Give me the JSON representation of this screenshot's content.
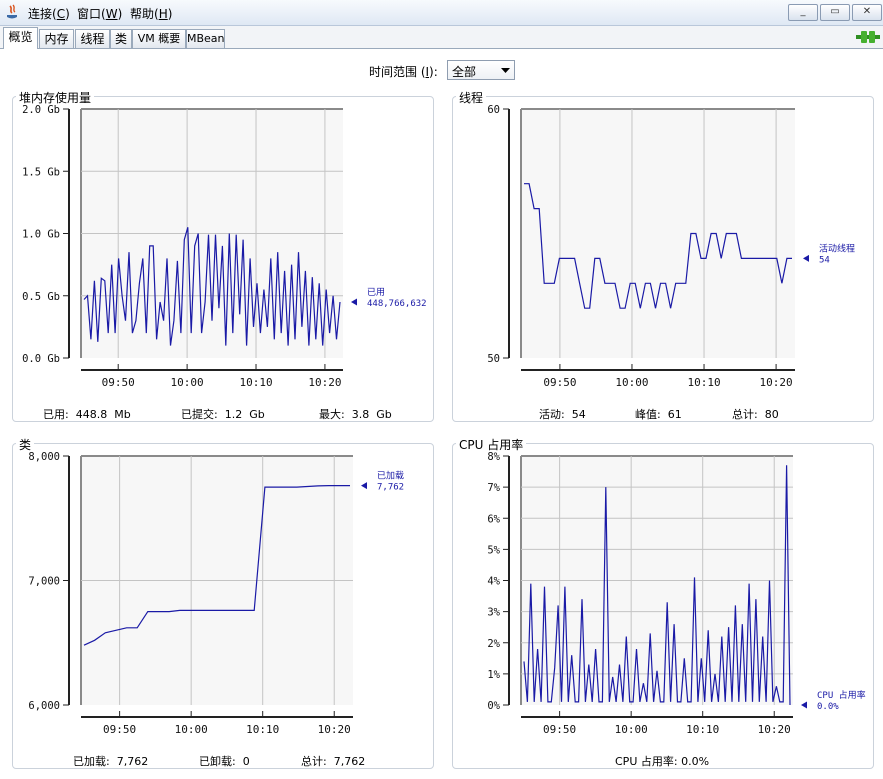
{
  "menu": [
    {
      "label": "连接(",
      "key": "C",
      "tail": ")"
    },
    {
      "label": "窗口(",
      "key": "W",
      "tail": ")"
    },
    {
      "label": "帮助(",
      "key": "H",
      "tail": ")"
    }
  ],
  "window_buttons": {
    "minimize": "_",
    "restore": "▭",
    "close": "✕"
  },
  "tabs": [
    "概览",
    "内存",
    "线程",
    "类",
    "VM 概要",
    "MBean"
  ],
  "range": {
    "label": "时间范围 (",
    "key": "I",
    "tail": "):",
    "value": "全部"
  },
  "colors": {
    "line": "#1a1aa6",
    "grid": "#c4c4c4",
    "plot_bg": "#f7f7f7"
  },
  "panels": {
    "heap": {
      "title": "堆内存使用量",
      "y_ticks": [
        "2.0 Gb",
        "1.5 Gb",
        "1.0 Gb",
        "0.5 Gb",
        "0.0 Gb"
      ],
      "x_ticks": [
        "09:50",
        "10:00",
        "10:10",
        "10:20"
      ],
      "marker_label": "已用",
      "marker_value": "448,766,632",
      "stats": [
        {
          "label": "已用:",
          "value": "448.8  Mb"
        },
        {
          "label": "已提交:",
          "value": "1.2  Gb"
        },
        {
          "label": "最大:",
          "value": "3.8  Gb"
        }
      ]
    },
    "threads": {
      "title": "线程",
      "y_ticks": [
        "60",
        "50"
      ],
      "x_ticks": [
        "09:50",
        "10:00",
        "10:10",
        "10:20"
      ],
      "marker_label": "活动线程",
      "marker_value": "54",
      "stats": [
        {
          "label": "活动:",
          "value": "54"
        },
        {
          "label": "峰值:",
          "value": "61"
        },
        {
          "label": "总计:",
          "value": "80"
        }
      ]
    },
    "classes": {
      "title": "类",
      "y_ticks": [
        "8,000",
        "7,000",
        "6,000"
      ],
      "x_ticks": [
        "09:50",
        "10:00",
        "10:10",
        "10:20"
      ],
      "marker_label": "已加载",
      "marker_value": "7,762",
      "stats": [
        {
          "label": "已加载:",
          "value": "7,762"
        },
        {
          "label": "已卸载:",
          "value": "0"
        },
        {
          "label": "总计:",
          "value": "7,762"
        }
      ]
    },
    "cpu": {
      "title": "CPU 占用率",
      "y_ticks": [
        "8%",
        "7%",
        "6%",
        "5%",
        "4%",
        "3%",
        "2%",
        "1%",
        "0%"
      ],
      "x_ticks": [
        "09:50",
        "10:00",
        "10:10",
        "10:20"
      ],
      "marker_label": "CPU 占用率",
      "marker_value": "0.0%",
      "stats": [
        {
          "label": "CPU 占用率:",
          "value": "0.0%"
        }
      ]
    }
  },
  "chart_data": [
    {
      "type": "line",
      "title": "堆内存使用量",
      "ylabel": "Gb",
      "ylim": [
        0,
        2.0
      ],
      "x_ticks": [
        "09:50",
        "10:00",
        "10:10",
        "10:20"
      ],
      "series": [
        {
          "name": "已用",
          "values": [
            0.47,
            0.5,
            0.15,
            0.62,
            0.13,
            0.64,
            0.62,
            0.2,
            0.75,
            0.2,
            0.8,
            0.5,
            0.3,
            0.85,
            0.2,
            0.3,
            0.6,
            0.8,
            0.2,
            0.9,
            0.9,
            0.15,
            0.45,
            0.3,
            0.8,
            0.1,
            0.3,
            0.78,
            0.2,
            0.95,
            1.05,
            0.2,
            0.9,
            1.0,
            0.2,
            0.45,
            0.99,
            0.3,
            0.99,
            0.4,
            0.9,
            0.1,
            1.0,
            0.2,
            0.99,
            0.35,
            0.95,
            0.1,
            0.8,
            0.25,
            0.6,
            0.2,
            0.55,
            0.25,
            0.8,
            0.15,
            0.85,
            0.2,
            0.7,
            0.1,
            0.75,
            0.15,
            0.85,
            0.25,
            0.7,
            0.1,
            0.65,
            0.15,
            0.6,
            0.1,
            0.55,
            0.2,
            0.5,
            0.15,
            0.45
          ]
        }
      ]
    },
    {
      "type": "line",
      "title": "线程",
      "ylim": [
        50,
        60
      ],
      "x_ticks": [
        "09:50",
        "10:00",
        "10:10",
        "10:20"
      ],
      "series": [
        {
          "name": "活动线程",
          "values": [
            57,
            57,
            56,
            56,
            53,
            53,
            53,
            54,
            54,
            54,
            54,
            53,
            52,
            52,
            54,
            54,
            53,
            53,
            53,
            52,
            52,
            53,
            53,
            52,
            53,
            53,
            52,
            53,
            53,
            52,
            53,
            53,
            53,
            55,
            55,
            54,
            54,
            55,
            55,
            54,
            55,
            55,
            55,
            54,
            54,
            54,
            54,
            54,
            54,
            54,
            54,
            53,
            54,
            54
          ]
        }
      ]
    },
    {
      "type": "line",
      "title": "类",
      "ylim": [
        6000,
        8000
      ],
      "x_ticks": [
        "09:50",
        "10:00",
        "10:10",
        "10:20"
      ],
      "series": [
        {
          "name": "已加载",
          "values": [
            6480,
            6520,
            6580,
            6600,
            6620,
            6620,
            6750,
            6750,
            6750,
            6760,
            6760,
            6760,
            6760,
            6760,
            6760,
            6760,
            6760,
            7750,
            7750,
            7750,
            7750,
            7755,
            7760,
            7762,
            7762,
            7762
          ]
        }
      ]
    },
    {
      "type": "line",
      "title": "CPU 占用率",
      "ylabel": "%",
      "ylim": [
        0,
        8
      ],
      "x_ticks": [
        "09:50",
        "10:00",
        "10:10",
        "10:20"
      ],
      "series": [
        {
          "name": "CPU 占用率",
          "values": [
            1.4,
            0.1,
            3.9,
            0.1,
            1.8,
            0.1,
            3.8,
            0.1,
            0.1,
            1.2,
            3.2,
            0.1,
            3.8,
            0.1,
            1.6,
            0.1,
            0.1,
            3.4,
            0.1,
            1.3,
            0.1,
            1.8,
            0.1,
            0.1,
            7.0,
            0.1,
            0.9,
            0.1,
            1.3,
            0.1,
            2.2,
            0.1,
            0.1,
            1.8,
            0.1,
            0.7,
            0.1,
            2.3,
            0.1,
            1.1,
            0.1,
            0.1,
            3.3,
            0.1,
            2.6,
            0.1,
            0.1,
            1.5,
            0.1,
            0.1,
            4.1,
            0.1,
            1.5,
            0.1,
            2.4,
            0.1,
            1.0,
            0.1,
            2.2,
            0.1,
            2.5,
            0.1,
            3.2,
            0.1,
            2.6,
            0.1,
            3.9,
            0.1,
            3.4,
            0.1,
            2.2,
            0.1,
            4.0,
            0.1,
            0.6,
            0.1,
            0.1,
            7.7,
            0.0
          ]
        }
      ]
    }
  ]
}
